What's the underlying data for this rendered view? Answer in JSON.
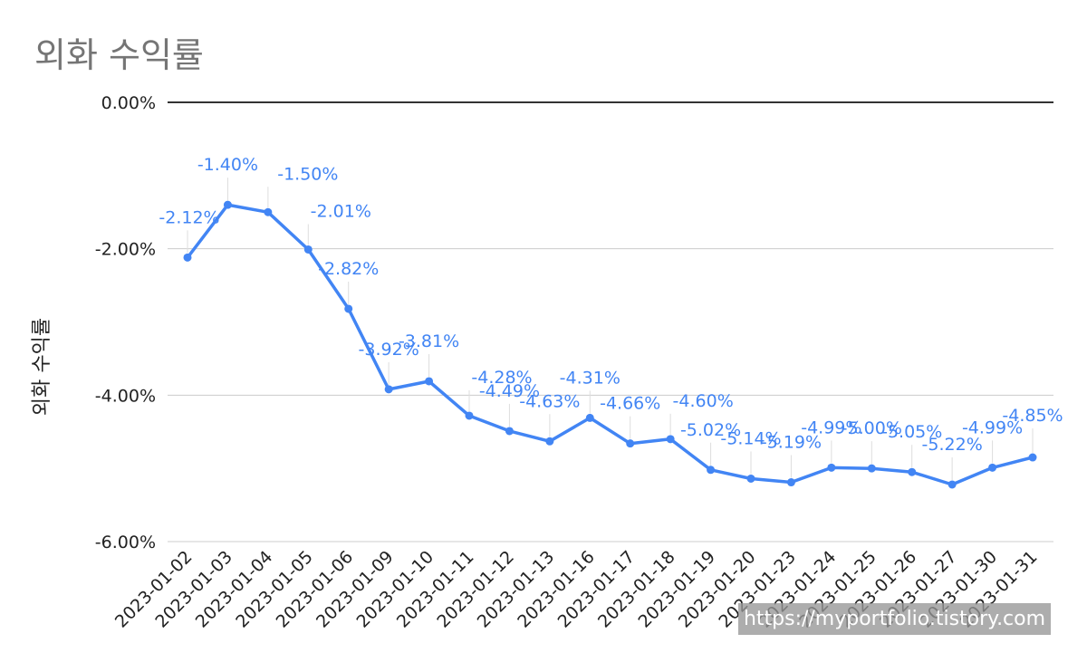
{
  "chart_data": {
    "type": "line",
    "title": "외화 수익률",
    "ylabel": "외화 수익률",
    "xlabel": "",
    "y_tick_labels": [
      "0.00%",
      "-2.00%",
      "-4.00%",
      "-6.00%"
    ],
    "ylim": [
      -6,
      0
    ],
    "grid": true,
    "categories": [
      "2023-01-02",
      "2023-01-03",
      "2023-01-04",
      "2023-01-05",
      "2023-01-06",
      "2023-01-09",
      "2023-01-10",
      "2023-01-11",
      "2023-01-12",
      "2023-01-13",
      "2023-01-16",
      "2023-01-17",
      "2023-01-18",
      "2023-01-19",
      "2023-01-20",
      "2023-01-23",
      "2023-01-24",
      "2023-01-25",
      "2023-01-26",
      "2023-01-27",
      "2023-01-30",
      "2023-01-31"
    ],
    "values": [
      -2.12,
      -1.4,
      -1.5,
      -2.01,
      -2.82,
      -3.92,
      -3.81,
      -4.28,
      -4.49,
      -4.63,
      -4.31,
      -4.66,
      -4.6,
      -5.02,
      -5.14,
      -5.19,
      -4.99,
      -5.0,
      -5.05,
      -5.22,
      -4.99,
      -4.85
    ],
    "data_labels": [
      "-2.12%",
      "-1.40%",
      "-1.50%",
      "-2.01%",
      "-2.82%",
      "-3.92%",
      "-3.81%",
      "-4.28%",
      "-4.49%",
      "-4.63%",
      "-4.31%",
      "-4.66%",
      "-4.60%",
      "-5.02%",
      "-5.14%",
      "-5.19%",
      "-4.99%",
      "-5.00%",
      "-5.05%",
      "-5.22%",
      "-4.99%",
      "-4.85%"
    ],
    "series_color": "#4285f4"
  },
  "watermark": "https://myportfolio.tistory.com"
}
